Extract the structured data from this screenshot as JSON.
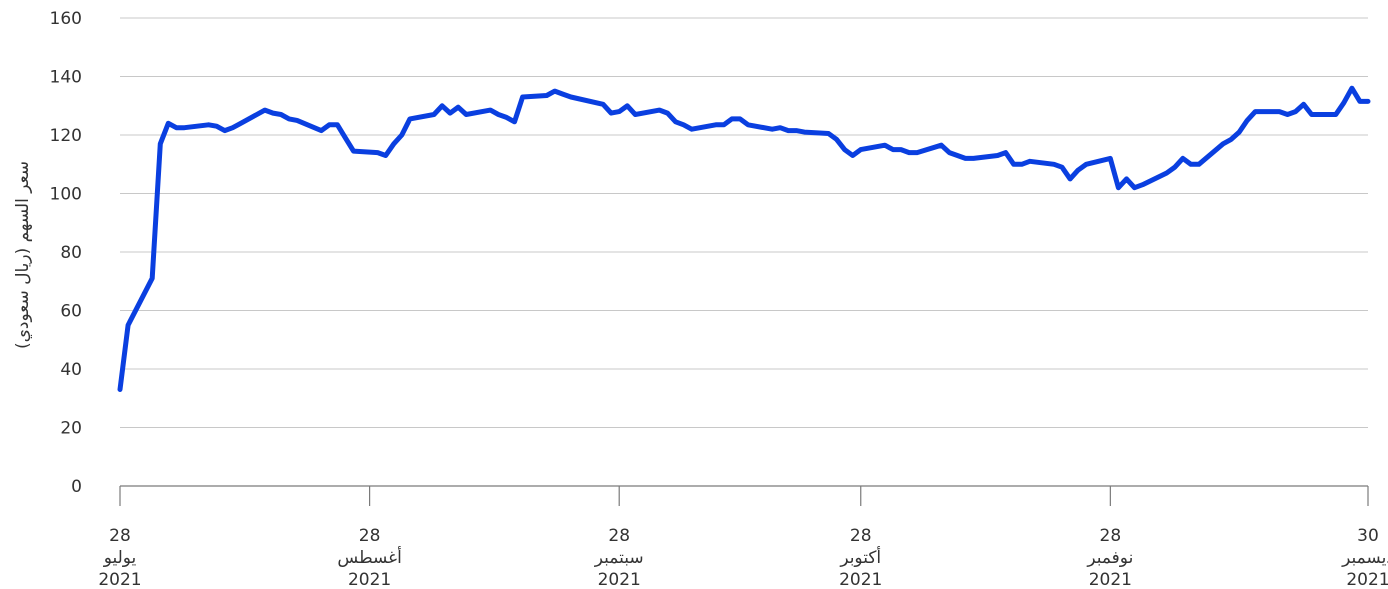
{
  "chart_data": {
    "type": "line",
    "title": "",
    "xlabel": "",
    "ylabel": "سعر السهم (ريال سعودي)",
    "ylim": [
      0,
      160
    ],
    "yticks": [
      0,
      20,
      40,
      60,
      80,
      100,
      120,
      140,
      160
    ],
    "xlim": [
      "2021-07-28",
      "2021-12-30"
    ],
    "grid": "horizontal",
    "xticks": [
      {
        "date": "2021-07-28",
        "day": "28",
        "month": "يوليو",
        "year": "2021"
      },
      {
        "date": "2021-08-28",
        "day": "28",
        "month": "أغسطس",
        "year": "2021"
      },
      {
        "date": "2021-09-28",
        "day": "28",
        "month": "سبتمبر",
        "year": "2021"
      },
      {
        "date": "2021-10-28",
        "day": "28",
        "month": "أكتوبر",
        "year": "2021"
      },
      {
        "date": "2021-11-28",
        "day": "28",
        "month": "نوفمبر",
        "year": "2021"
      },
      {
        "date": "2021-12-30",
        "day": "30",
        "month": "ديسمبر",
        "year": "2021"
      }
    ],
    "line_color": "#0a3fe0",
    "series": [
      {
        "x": [
          "2021-07-28",
          "2021-07-29",
          "2021-08-01",
          "2021-08-02",
          "2021-08-03",
          "2021-08-04",
          "2021-08-05",
          "2021-08-08",
          "2021-08-09",
          "2021-08-10",
          "2021-08-11",
          "2021-08-12",
          "2021-08-15",
          "2021-08-16",
          "2021-08-17",
          "2021-08-18",
          "2021-08-19",
          "2021-08-22",
          "2021-08-23",
          "2021-08-24",
          "2021-08-25",
          "2021-08-26",
          "2021-08-29",
          "2021-08-30",
          "2021-08-31",
          "2021-09-01",
          "2021-09-02",
          "2021-09-05",
          "2021-09-06",
          "2021-09-07",
          "2021-09-08",
          "2021-09-09",
          "2021-09-12",
          "2021-09-13",
          "2021-09-14",
          "2021-09-15",
          "2021-09-16",
          "2021-09-19",
          "2021-09-20",
          "2021-09-21",
          "2021-09-22",
          "2021-09-26",
          "2021-09-27",
          "2021-09-28",
          "2021-09-29",
          "2021-09-30",
          "2021-10-03",
          "2021-10-04",
          "2021-10-05",
          "2021-10-06",
          "2021-10-07",
          "2021-10-10",
          "2021-10-11",
          "2021-10-12",
          "2021-10-13",
          "2021-10-14",
          "2021-10-17",
          "2021-10-18",
          "2021-10-19",
          "2021-10-20",
          "2021-10-21",
          "2021-10-24",
          "2021-10-25",
          "2021-10-26",
          "2021-10-27",
          "2021-10-28",
          "2021-10-31",
          "2021-11-01",
          "2021-11-02",
          "2021-11-03",
          "2021-11-04",
          "2021-11-07",
          "2021-11-08",
          "2021-11-09",
          "2021-11-10",
          "2021-11-11",
          "2021-11-14",
          "2021-11-15",
          "2021-11-16",
          "2021-11-17",
          "2021-11-18",
          "2021-11-21",
          "2021-11-22",
          "2021-11-23",
          "2021-11-24",
          "2021-11-25",
          "2021-11-28",
          "2021-11-29",
          "2021-11-30",
          "2021-12-01",
          "2021-12-02",
          "2021-12-05",
          "2021-12-06",
          "2021-12-07",
          "2021-12-08",
          "2021-12-09",
          "2021-12-12",
          "2021-12-13",
          "2021-12-14",
          "2021-12-15",
          "2021-12-16",
          "2021-12-19",
          "2021-12-20",
          "2021-12-21",
          "2021-12-22",
          "2021-12-23",
          "2021-12-26",
          "2021-12-27",
          "2021-12-28",
          "2021-12-29",
          "2021-12-30"
        ],
        "values": [
          33,
          55,
          71,
          117,
          124,
          122.5,
          122.5,
          123.5,
          123,
          121.5,
          122.5,
          124,
          128.5,
          127.5,
          127,
          125.5,
          125,
          121.5,
          123.5,
          123.5,
          119,
          114.5,
          114,
          113,
          117,
          120,
          125.5,
          127,
          130,
          127.5,
          129.5,
          127,
          128.5,
          127,
          126,
          124.5,
          133,
          133.5,
          135,
          134,
          133,
          130.5,
          127.5,
          128,
          130,
          127,
          128.5,
          127.5,
          124.5,
          123.5,
          122,
          123.5,
          123.5,
          125.5,
          125.5,
          123.5,
          122,
          122.5,
          121.5,
          121.5,
          121,
          120.5,
          118.5,
          115,
          113,
          115,
          116.5,
          115,
          115,
          114,
          114,
          116.5,
          114,
          113,
          112,
          112,
          113,
          114,
          110,
          110,
          111,
          110,
          109,
          105,
          108,
          110,
          112,
          102,
          105,
          102,
          103,
          107,
          109,
          112,
          110,
          110,
          117,
          118.5,
          121,
          125,
          128,
          128,
          127,
          128,
          130.5,
          127,
          127,
          131,
          136,
          131.5,
          131.5
        ]
      }
    ]
  }
}
